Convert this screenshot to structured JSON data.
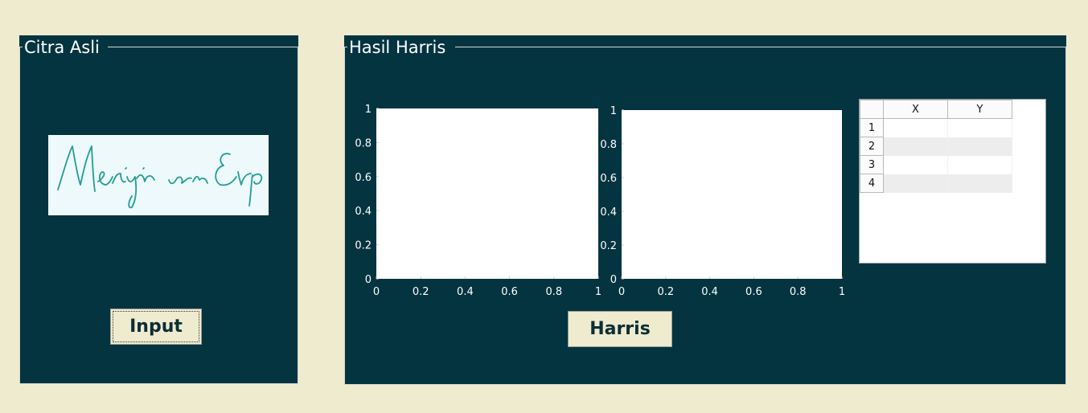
{
  "left_panel": {
    "title": "Citra Asli",
    "input_button": "Input"
  },
  "right_panel": {
    "title": "Hasil Harris",
    "harris_button": "Harris",
    "table": {
      "headers": [
        "",
        "X",
        "Y"
      ],
      "rows": [
        "1",
        "2",
        "3",
        "4"
      ]
    }
  },
  "chart_data": [
    {
      "type": "scatter",
      "series": [],
      "xlim": [
        0,
        1
      ],
      "ylim": [
        0,
        1
      ],
      "x_ticks": [
        "0",
        "0.2",
        "0.4",
        "0.6",
        "0.8",
        "1"
      ],
      "y_ticks": [
        "0",
        "0.2",
        "0.4",
        "0.6",
        "0.8",
        "1"
      ]
    },
    {
      "type": "scatter",
      "series": [],
      "xlim": [
        0,
        1
      ],
      "ylim": [
        0,
        1
      ],
      "x_ticks": [
        "0",
        "0.2",
        "0.4",
        "0.6",
        "0.8",
        "1"
      ],
      "y_ticks": [
        "0",
        "0.2",
        "0.4",
        "0.6",
        "0.8",
        "1"
      ]
    }
  ],
  "colors": {
    "background": "#efebcf",
    "panel": "#033440",
    "ink": "#1f9e94"
  }
}
